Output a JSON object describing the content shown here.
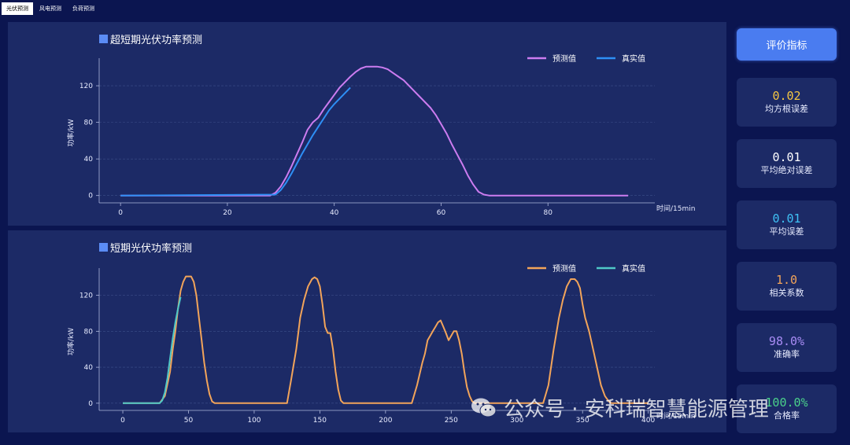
{
  "tabs": [
    {
      "label": "光伏预测",
      "active": true
    },
    {
      "label": "风电预测",
      "active": false
    },
    {
      "label": "负荷预测",
      "active": false
    }
  ],
  "eval_button": "评价指标",
  "metrics": [
    {
      "value": "0.02",
      "label": "均方根误差",
      "color": "#f5c542"
    },
    {
      "value": "0.01",
      "label": "平均绝对误差",
      "color": "#ffffff"
    },
    {
      "value": "0.01",
      "label": "平均误差",
      "color": "#3fc1f5"
    },
    {
      "value": "1.0",
      "label": "相关系数",
      "color": "#f2a45a"
    },
    {
      "value": "98.0%",
      "label": "准确率",
      "color": "#a98cf5"
    },
    {
      "value": "100.0%",
      "label": "合格率",
      "color": "#4ad18a"
    }
  ],
  "watermark": "公众号 · 安科瑞智慧能源管理",
  "chart_data": [
    {
      "type": "line",
      "title": "超短期光伏功率预测",
      "xlabel": "时间/15min",
      "ylabel": "功率/kW",
      "xlim": [
        -4,
        100
      ],
      "ylim": [
        -8,
        145
      ],
      "xticks": [
        0,
        20,
        40,
        60,
        80
      ],
      "yticks": [
        0,
        40,
        80,
        120
      ],
      "grid": true,
      "legend": "top-right",
      "series": [
        {
          "name": "预测值",
          "color": "#cc7cf0",
          "x": [
            0,
            28,
            29,
            30,
            31,
            32,
            33,
            34,
            35,
            36,
            37,
            38,
            39,
            40,
            41,
            42,
            43,
            44,
            45,
            46,
            47,
            48,
            49,
            50,
            51,
            52,
            53,
            54,
            55,
            56,
            57,
            58,
            59,
            60,
            61,
            62,
            63,
            64,
            65,
            66,
            67,
            68,
            69,
            70,
            95
          ],
          "y": [
            0,
            0,
            3,
            10,
            20,
            32,
            45,
            58,
            72,
            80,
            85,
            94,
            102,
            110,
            118,
            124,
            130,
            135,
            139,
            141,
            141,
            141,
            140,
            138,
            134,
            130,
            126,
            120,
            114,
            108,
            102,
            96,
            88,
            78,
            68,
            56,
            45,
            34,
            22,
            12,
            4,
            1,
            0,
            0,
            0
          ]
        },
        {
          "name": "真实值",
          "color": "#2e8ff5",
          "x": [
            0,
            29,
            30,
            31,
            32,
            33,
            34,
            35,
            36,
            37,
            38,
            39,
            40,
            41,
            42,
            43
          ],
          "y": [
            0,
            1,
            6,
            14,
            24,
            35,
            46,
            56,
            66,
            75,
            84,
            93,
            100,
            106,
            112,
            118
          ]
        }
      ]
    },
    {
      "type": "line",
      "title": "短期光伏功率预测",
      "xlabel": "时间/15min",
      "ylabel": "功率/kW",
      "xlim": [
        -18,
        405
      ],
      "ylim": [
        -8,
        145
      ],
      "xticks": [
        0,
        50,
        100,
        150,
        200,
        250,
        300,
        350,
        400
      ],
      "yticks": [
        0,
        40,
        80,
        120
      ],
      "grid": true,
      "legend": "top-right",
      "series": [
        {
          "name": "预测值",
          "color": "#f2a45a",
          "x": [
            0,
            28,
            32,
            36,
            38,
            40,
            42,
            44,
            46,
            48,
            50,
            52,
            54,
            56,
            58,
            60,
            62,
            64,
            66,
            68,
            70,
            125,
            128,
            132,
            135,
            138,
            141,
            144,
            146,
            148,
            150,
            152,
            154,
            156,
            158,
            160,
            162,
            164,
            166,
            168,
            170,
            220,
            224,
            228,
            230,
            232,
            234,
            236,
            238,
            240,
            242,
            244,
            246,
            248,
            250,
            252,
            254,
            256,
            258,
            260,
            262,
            264,
            266,
            268,
            270,
            320,
            324,
            328,
            332,
            335,
            338,
            341,
            344,
            346,
            348,
            350,
            352,
            355,
            358,
            361,
            364,
            367,
            370,
            372,
            374,
            376,
            400
          ],
          "y": [
            0,
            0,
            8,
            35,
            60,
            80,
            105,
            125,
            135,
            141,
            141,
            141,
            135,
            120,
            95,
            70,
            45,
            25,
            10,
            2,
            0,
            0,
            25,
            60,
            95,
            115,
            130,
            138,
            140,
            138,
            130,
            110,
            85,
            78,
            78,
            60,
            35,
            15,
            3,
            0,
            0,
            0,
            20,
            45,
            55,
            70,
            75,
            80,
            85,
            90,
            92,
            85,
            78,
            70,
            75,
            80,
            80,
            70,
            55,
            35,
            18,
            8,
            2,
            0,
            0,
            0,
            20,
            60,
            95,
            115,
            130,
            138,
            138,
            135,
            128,
            110,
            95,
            80,
            60,
            40,
            20,
            8,
            2,
            0,
            0,
            0,
            0
          ]
        },
        {
          "name": "真实值",
          "color": "#4fc8c8",
          "x": [
            0,
            28,
            30,
            32,
            34,
            36,
            38,
            40,
            42,
            44
          ],
          "y": [
            0,
            0,
            3,
            12,
            28,
            50,
            72,
            90,
            105,
            118
          ]
        }
      ]
    }
  ]
}
